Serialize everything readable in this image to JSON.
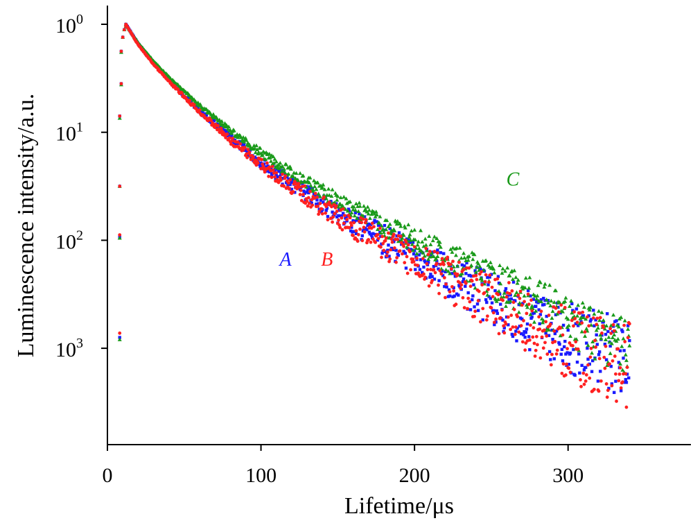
{
  "chart_data": {
    "type": "scatter",
    "xlabel": "Lifetime/μs",
    "ylabel": "Luminescence intensity/a.u.",
    "xlim": [
      0,
      380
    ],
    "x_ticks": [
      0,
      100,
      200,
      300
    ],
    "x_tick_labels": [
      "0",
      "100",
      "200",
      "300"
    ],
    "y_scale": "log",
    "y_ticks": [
      {
        "base": "10",
        "exp": "0"
      },
      {
        "base": "10",
        "exp": "1"
      },
      {
        "base": "10",
        "exp": "2"
      },
      {
        "base": "10",
        "exp": "3"
      }
    ],
    "grid": false,
    "series": [
      {
        "name": "A",
        "color": "#1a1aff",
        "marker": "square",
        "rise_x": [
          8,
          8,
          8,
          8,
          9,
          9,
          10,
          11,
          12
        ],
        "rise_y": [
          2.9,
          1.97,
          1.5,
          0.85,
          0.55,
          0.25,
          0.12,
          0.05,
          0.02
        ],
        "x": [
          12,
          20,
          30,
          40,
          50,
          60,
          80,
          100,
          120,
          140,
          160,
          180,
          200,
          220,
          240,
          260,
          280,
          300,
          320,
          340
        ],
        "y": [
          0.0,
          0.18,
          0.36,
          0.52,
          0.66,
          0.8,
          1.05,
          1.28,
          1.48,
          1.66,
          1.83,
          2.0,
          2.16,
          2.32,
          2.47,
          2.62,
          2.77,
          2.9,
          3.02,
          3.1
        ]
      },
      {
        "name": "B",
        "color": "#ff2020",
        "marker": "circle",
        "rise_x": [
          8,
          8,
          8,
          8,
          9,
          9,
          10,
          11,
          12
        ],
        "rise_y": [
          2.86,
          1.95,
          1.5,
          0.85,
          0.55,
          0.25,
          0.12,
          0.05,
          0.02
        ],
        "x": [
          12,
          20,
          30,
          40,
          50,
          60,
          80,
          100,
          120,
          140,
          160,
          180,
          200,
          220,
          240,
          260,
          280,
          300,
          320,
          340
        ],
        "y": [
          0.0,
          0.19,
          0.37,
          0.53,
          0.67,
          0.81,
          1.07,
          1.3,
          1.5,
          1.69,
          1.87,
          2.03,
          2.19,
          2.35,
          2.5,
          2.65,
          2.8,
          2.95,
          3.08,
          3.16
        ]
      },
      {
        "name": "C",
        "color": "#1a9a1a",
        "marker": "triangle",
        "rise_x": [
          8,
          8,
          8,
          8,
          9,
          9,
          10,
          11,
          12
        ],
        "rise_y": [
          2.92,
          1.98,
          1.5,
          0.87,
          0.56,
          0.26,
          0.12,
          0.05,
          0.02
        ],
        "x": [
          12,
          20,
          30,
          40,
          50,
          60,
          80,
          100,
          120,
          140,
          160,
          180,
          200,
          220,
          240,
          260,
          280,
          300,
          320,
          340
        ],
        "y": [
          0.0,
          0.17,
          0.34,
          0.49,
          0.62,
          0.75,
          0.98,
          1.19,
          1.38,
          1.55,
          1.71,
          1.86,
          2.0,
          2.15,
          2.29,
          2.44,
          2.58,
          2.73,
          2.86,
          2.96
        ]
      }
    ],
    "annotations": [
      {
        "text": "A",
        "series": "A",
        "x": 116,
        "y": 2.17
      },
      {
        "text": "B",
        "series": "B",
        "x": 143,
        "y": 2.17
      },
      {
        "text": "C",
        "series": "C",
        "x": 264,
        "y": 1.43
      }
    ]
  }
}
